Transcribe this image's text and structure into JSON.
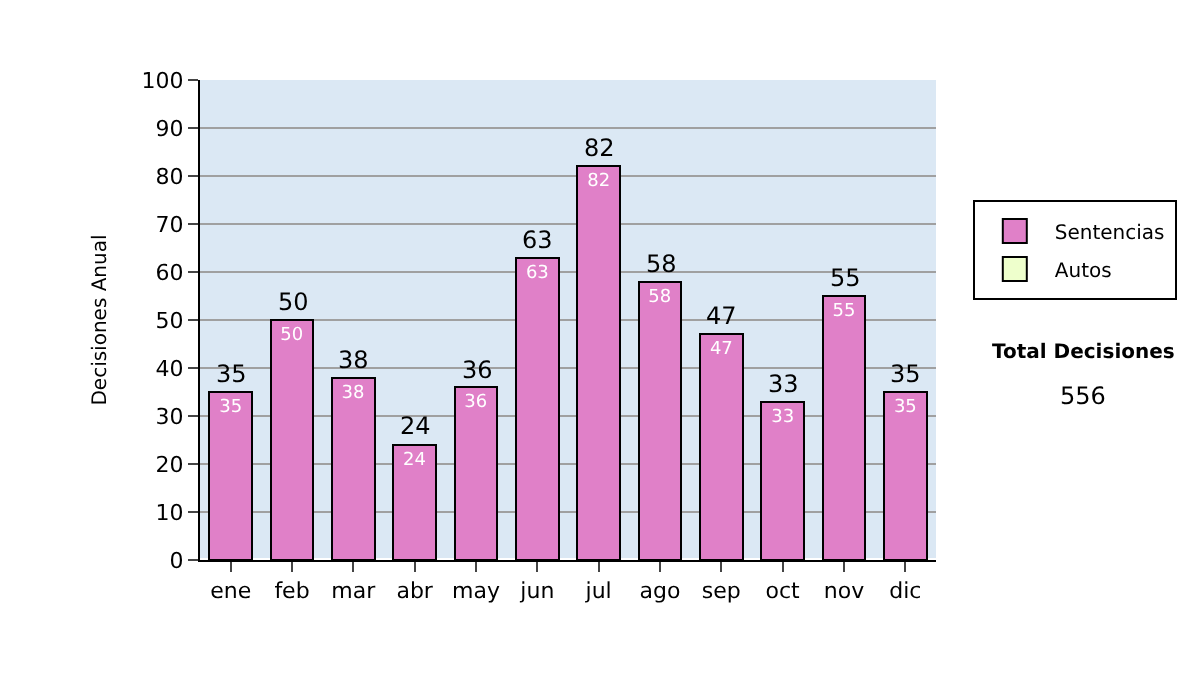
{
  "chart_data": {
    "type": "bar",
    "stacked": true,
    "ylabel": "Decisiones Anual",
    "categories": [
      "ene",
      "feb",
      "mar",
      "abr",
      "may",
      "jun",
      "jul",
      "ago",
      "sep",
      "oct",
      "nov",
      "dic"
    ],
    "series": [
      {
        "name": "Sentencias",
        "color": "#e080c8",
        "values": [
          35,
          50,
          38,
          24,
          36,
          63,
          82,
          58,
          47,
          33,
          55,
          35
        ],
        "value_labels": [
          "35",
          "50",
          "38",
          "24",
          "36",
          "63",
          "82",
          "58",
          "47",
          "33",
          "55",
          "35"
        ]
      },
      {
        "name": "Autos",
        "color": "#eeffcc",
        "values": [
          null,
          null,
          null,
          null,
          null,
          null,
          null,
          null,
          null,
          null,
          null,
          null
        ]
      }
    ],
    "totals": [
      "35",
      "50",
      "38",
      "24",
      "36",
      "63",
      "82",
      "58",
      "47",
      "33",
      "55",
      "35"
    ],
    "ylim": [
      0,
      100
    ],
    "yticks": [
      0,
      10,
      20,
      30,
      40,
      50,
      60,
      70,
      80,
      90,
      100
    ],
    "grid": "y",
    "legend": "right",
    "annotations": [
      "Total Decisiones",
      "556"
    ]
  }
}
